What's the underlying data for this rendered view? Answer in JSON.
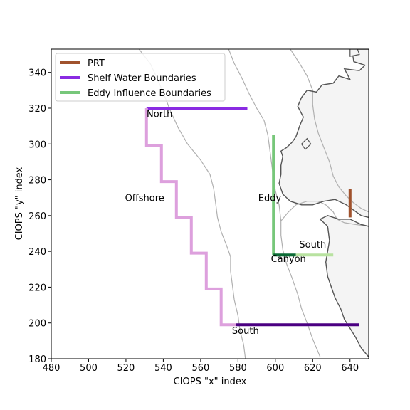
{
  "colors": {
    "prt": "#a0522d",
    "shelf": "#8a2be2",
    "shelf_light": "#dda0dd",
    "shelf_dark": "#4b0082",
    "eddy": "#77c77a",
    "eddy_light": "#b8e2a0",
    "eddy_dark": "#0b6b35",
    "coast": "#555555",
    "land": "#f4f4f4",
    "bathy": "#b0b0b0"
  },
  "chart_data": {
    "type": "map",
    "xlabel": "CIOPS \"x\" index",
    "ylabel": "CIOPS \"y\" index",
    "xlim": [
      480,
      650
    ],
    "ylim": [
      180,
      353
    ],
    "xticks": [
      480,
      500,
      520,
      540,
      560,
      580,
      600,
      620,
      640
    ],
    "yticks": [
      180,
      200,
      220,
      240,
      260,
      280,
      300,
      320,
      340
    ],
    "legend": {
      "placement": "upper-left",
      "entries": [
        {
          "label": "PRT",
          "color_key": "prt"
        },
        {
          "label": "Shelf Water Boundaries",
          "color_key": "shelf"
        },
        {
          "label": "Eddy Influence Boundaries",
          "color_key": "eddy"
        }
      ]
    },
    "boundaries": [
      {
        "id": "prt",
        "color_key": "prt",
        "points": [
          [
            640,
            275
          ],
          [
            640,
            259
          ]
        ]
      },
      {
        "id": "north",
        "color_key": "shelf",
        "points": [
          [
            531,
            320
          ],
          [
            585,
            320
          ]
        ]
      },
      {
        "id": "offshore",
        "color_key": "shelf_light",
        "points": [
          [
            579,
            199
          ],
          [
            571,
            199
          ],
          [
            571,
            219
          ],
          [
            563,
            219
          ],
          [
            563,
            239
          ],
          [
            555,
            239
          ],
          [
            555,
            259
          ],
          [
            547,
            259
          ],
          [
            547,
            279
          ],
          [
            539,
            279
          ],
          [
            539,
            299
          ],
          [
            531,
            299
          ],
          [
            531,
            320
          ]
        ]
      },
      {
        "id": "south-shelf",
        "color_key": "shelf_dark",
        "points": [
          [
            579,
            199
          ],
          [
            645,
            199
          ]
        ]
      },
      {
        "id": "eddy",
        "color_key": "eddy",
        "points": [
          [
            599,
            305
          ],
          [
            599,
            238
          ]
        ]
      },
      {
        "id": "canyon",
        "color_key": "eddy_dark",
        "points": [
          [
            599,
            238
          ],
          [
            611,
            238
          ]
        ]
      },
      {
        "id": "south-eddy",
        "color_key": "eddy_light",
        "points": [
          [
            611,
            238
          ],
          [
            631,
            238
          ]
        ]
      }
    ],
    "region_labels": [
      {
        "text": "North",
        "x": 538,
        "y": 315
      },
      {
        "text": "Offshore",
        "x": 530,
        "y": 268
      },
      {
        "text": "Eddy",
        "x": 597,
        "y": 268
      },
      {
        "text": "Canyon",
        "x": 607,
        "y": 234
      },
      {
        "text": "South",
        "x": 620,
        "y": 242
      },
      {
        "text": "South",
        "x": 584,
        "y": 194
      }
    ],
    "coastline": [
      [
        650,
        353
      ],
      [
        641,
        353
      ],
      [
        642,
        346
      ],
      [
        648,
        344
      ],
      [
        645,
        341
      ],
      [
        637,
        342
      ],
      [
        640,
        336
      ],
      [
        634,
        338
      ],
      [
        631,
        334
      ],
      [
        625,
        333
      ],
      [
        622,
        329
      ],
      [
        617,
        330
      ],
      [
        614,
        326
      ],
      [
        612,
        321
      ],
      [
        615,
        315
      ],
      [
        613,
        310
      ],
      [
        611,
        304
      ],
      [
        609,
        301
      ],
      [
        606,
        298
      ],
      [
        603,
        296
      ],
      [
        604,
        293
      ],
      [
        603,
        288
      ],
      [
        603,
        283
      ],
      [
        602,
        278
      ],
      [
        604,
        272
      ],
      [
        608,
        268
      ],
      [
        614,
        266
      ],
      [
        620,
        266
      ],
      [
        626,
        268
      ],
      [
        632,
        269
      ],
      [
        638,
        266
      ],
      [
        642,
        263
      ],
      [
        646,
        260
      ],
      [
        650,
        259
      ]
    ],
    "coastline_south": [
      [
        650,
        254
      ],
      [
        646,
        255
      ],
      [
        640,
        258
      ],
      [
        634,
        258
      ],
      [
        628,
        260
      ],
      [
        624,
        258
      ],
      [
        628,
        254
      ],
      [
        629,
        246
      ],
      [
        628,
        240
      ],
      [
        627,
        234
      ],
      [
        628,
        226
      ],
      [
        630,
        220
      ],
      [
        632,
        214
      ],
      [
        635,
        208
      ],
      [
        637,
        202
      ],
      [
        640,
        197
      ],
      [
        643,
        192
      ],
      [
        646,
        186
      ],
      [
        650,
        181
      ]
    ],
    "islands": [
      [
        [
          640,
          353
        ],
        [
          640,
          349
        ],
        [
          645,
          350
        ],
        [
          644,
          353
        ]
      ],
      [
        [
          616,
          297
        ],
        [
          619,
          300
        ],
        [
          617,
          303
        ],
        [
          614,
          300
        ]
      ]
    ],
    "bathymetry": [
      [
        [
          527,
          353
        ],
        [
          533,
          345
        ],
        [
          537,
          336
        ],
        [
          541,
          326
        ],
        [
          544,
          318
        ],
        [
          548,
          309
        ],
        [
          553,
          300
        ],
        [
          560,
          291
        ],
        [
          565,
          283
        ],
        [
          567,
          275
        ],
        [
          568,
          267
        ],
        [
          569,
          259
        ],
        [
          571,
          251
        ],
        [
          574,
          243
        ],
        [
          576,
          237
        ],
        [
          576,
          229
        ],
        [
          577,
          221
        ],
        [
          578,
          213
        ],
        [
          580,
          204
        ],
        [
          581,
          196
        ],
        [
          583,
          188
        ],
        [
          584,
          180
        ]
      ],
      [
        [
          575,
          353
        ],
        [
          578,
          345
        ],
        [
          582,
          337
        ],
        [
          586,
          328
        ],
        [
          590,
          320
        ],
        [
          594,
          313
        ],
        [
          596,
          305
        ],
        [
          597,
          297
        ],
        [
          598,
          289
        ],
        [
          599,
          281
        ],
        [
          600,
          274
        ],
        [
          602,
          266
        ],
        [
          603,
          257
        ],
        [
          603,
          249
        ],
        [
          604,
          241
        ],
        [
          606,
          233
        ],
        [
          609,
          225
        ],
        [
          612,
          216
        ],
        [
          614,
          208
        ],
        [
          617,
          200
        ],
        [
          620,
          191
        ],
        [
          624,
          181
        ]
      ],
      [
        [
          608,
          353
        ],
        [
          613,
          345
        ],
        [
          617,
          338
        ],
        [
          620,
          330
        ],
        [
          620,
          322
        ],
        [
          621,
          314
        ],
        [
          623,
          306
        ],
        [
          626,
          298
        ],
        [
          629,
          290
        ],
        [
          631,
          282
        ],
        [
          634,
          276
        ],
        [
          638,
          271
        ],
        [
          642,
          267
        ],
        [
          646,
          264
        ],
        [
          650,
          262
        ]
      ],
      [
        [
          603,
          257
        ],
        [
          607,
          262
        ],
        [
          611,
          266
        ],
        [
          617,
          268
        ],
        [
          623,
          268
        ],
        [
          627,
          266
        ],
        [
          631,
          262
        ],
        [
          633,
          258
        ],
        [
          637,
          256
        ],
        [
          643,
          255
        ],
        [
          650,
          254
        ]
      ]
    ]
  }
}
